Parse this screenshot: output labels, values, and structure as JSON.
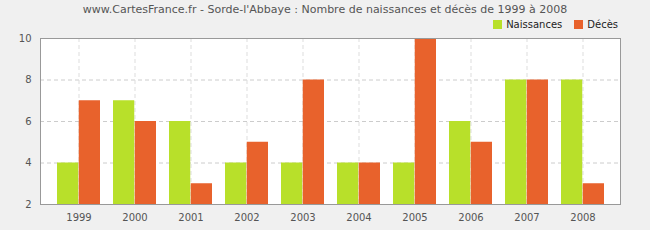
{
  "chart_data": {
    "type": "bar",
    "title": "www.CartesFrance.fr - Sorde-l'Abbaye : Nombre de naissances et décès de 1999 à 2008",
    "categories": [
      "1999",
      "2000",
      "2001",
      "2002",
      "2003",
      "2004",
      "2005",
      "2006",
      "2007",
      "2008"
    ],
    "series": [
      {
        "name": "Naissances",
        "color": "#b8e02a",
        "values": [
          4,
          7,
          6,
          4,
          4,
          4,
          4,
          6,
          8,
          8
        ]
      },
      {
        "name": "Décès",
        "color": "#e8622c",
        "values": [
          7,
          6,
          3,
          5,
          8,
          4,
          10,
          5,
          8,
          3
        ]
      }
    ],
    "ylim": [
      2,
      10
    ],
    "yticks": [
      2,
      4,
      6,
      8,
      10
    ],
    "grid": true,
    "legend": "top-right"
  }
}
